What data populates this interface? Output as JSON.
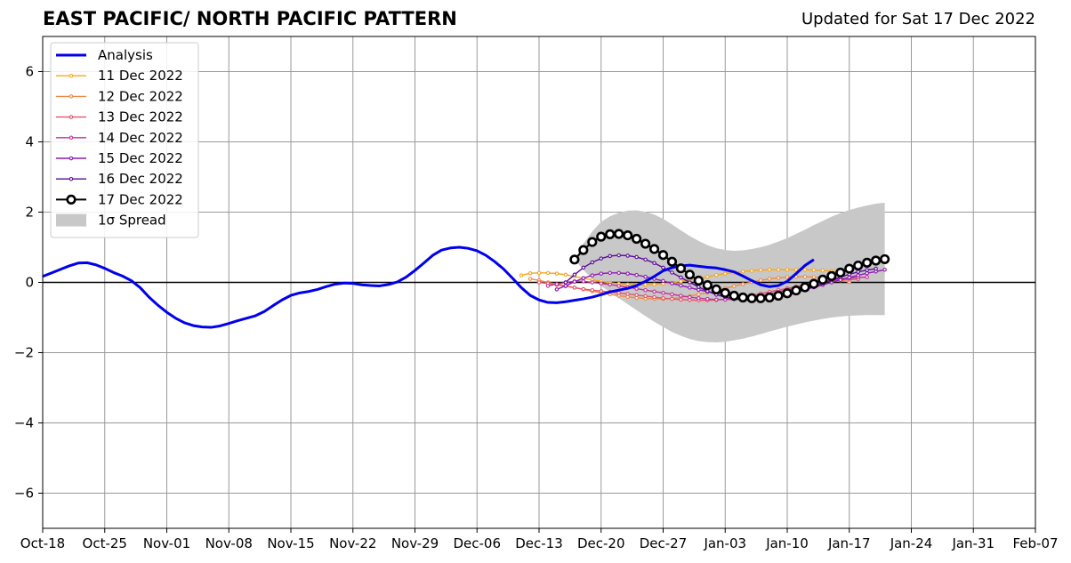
{
  "title": "EAST PACIFIC/ NORTH PACIFIC PATTERN",
  "updated": "Updated for Sat 17 Dec 2022",
  "colors": {
    "analysis": "#0000ee",
    "zero_line": "#000000",
    "grid": "#9a9a9a",
    "spread": "#c8c8c8"
  },
  "chart_data": {
    "type": "line",
    "title": "EAST PACIFIC/ NORTH PACIFIC PATTERN",
    "xlabel": "",
    "ylabel": "",
    "xlim": [
      "2022-10-18",
      "2023-02-07"
    ],
    "ylim": [
      -7,
      7
    ],
    "grid": true,
    "legend_position": "upper-left",
    "x_ticks": [
      "2022-10-18",
      "2022-10-25",
      "2022-11-01",
      "2022-11-08",
      "2022-11-15",
      "2022-11-22",
      "2022-11-29",
      "2022-12-06",
      "2022-12-13",
      "2022-12-20",
      "2022-12-27",
      "2023-01-03",
      "2023-01-10",
      "2023-01-17",
      "2023-01-24",
      "2023-01-31",
      "2023-02-07"
    ],
    "x_tick_labels": [
      "Oct-18",
      "Oct-25",
      "Nov-01",
      "Nov-08",
      "Nov-15",
      "Nov-22",
      "Nov-29",
      "Dec-06",
      "Dec-13",
      "Dec-20",
      "Dec-27",
      "Jan-03",
      "Jan-10",
      "Jan-17",
      "Jan-24",
      "Jan-31",
      "Feb-07"
    ],
    "y_ticks": [
      -6,
      -4,
      -2,
      0,
      2,
      4,
      6
    ],
    "y_tick_labels": [
      "−6",
      "−4",
      "−2",
      "0",
      "2",
      "4",
      "6"
    ],
    "analysis": {
      "name": "Analysis",
      "color": "#0000ee",
      "start": "2022-10-18",
      "values": [
        0.17,
        0.27,
        0.37,
        0.47,
        0.55,
        0.56,
        0.5,
        0.4,
        0.28,
        0.18,
        0.05,
        -0.15,
        -0.42,
        -0.65,
        -0.85,
        -1.02,
        -1.15,
        -1.23,
        -1.27,
        -1.28,
        -1.24,
        -1.17,
        -1.09,
        -1.02,
        -0.95,
        -0.83,
        -0.66,
        -0.5,
        -0.37,
        -0.3,
        -0.26,
        -0.2,
        -0.12,
        -0.05,
        -0.02,
        -0.03,
        -0.07,
        -0.09,
        -0.1,
        -0.06,
        0.01,
        0.15,
        0.34,
        0.55,
        0.77,
        0.92,
        0.98,
        1.0,
        0.97,
        0.9,
        0.77,
        0.59,
        0.38,
        0.12,
        -0.15,
        -0.37,
        -0.5,
        -0.57,
        -0.58,
        -0.55,
        -0.51,
        -0.47,
        -0.42,
        -0.35,
        -0.27,
        -0.22,
        -0.17,
        -0.09,
        0.03,
        0.17,
        0.33,
        0.42,
        0.47,
        0.49,
        0.46,
        0.43,
        0.41,
        0.36,
        0.3,
        0.18,
        0.05,
        -0.07,
        -0.12,
        -0.09,
        0.03,
        0.25,
        0.48,
        0.65
      ]
    },
    "forecasts": [
      {
        "name": "11 Dec 2022",
        "color": "#f5a623",
        "start": "2022-12-11",
        "values": [
          0.2,
          0.26,
          0.27,
          0.27,
          0.25,
          0.22,
          0.17,
          0.12,
          0.07,
          0.03,
          -0.01,
          -0.04,
          -0.06,
          -0.07,
          -0.07,
          -0.06,
          -0.04,
          -0.01,
          0.03,
          0.07,
          0.11,
          0.16,
          0.21,
          0.25,
          0.28,
          0.31,
          0.33,
          0.35,
          0.36,
          0.36,
          0.36,
          0.36,
          0.36,
          0.35,
          0.34,
          0.32,
          0.3
        ]
      },
      {
        "name": "12 Dec 2022",
        "color": "#f28a45",
        "start": "2022-12-12",
        "values": [
          0.1,
          0.06,
          0.0,
          -0.05,
          -0.1,
          -0.15,
          -0.2,
          -0.25,
          -0.3,
          -0.34,
          -0.38,
          -0.41,
          -0.44,
          -0.46,
          -0.47,
          -0.47,
          -0.46,
          -0.43,
          -0.39,
          -0.34,
          -0.29,
          -0.23,
          -0.17,
          -0.11,
          -0.05,
          0.01,
          0.06,
          0.1,
          0.13,
          0.15,
          0.16,
          0.16,
          0.15,
          0.13,
          0.1,
          0.06,
          0.01
        ]
      },
      {
        "name": "13 Dec 2022",
        "color": "#e0566a",
        "start": "2022-12-13",
        "values": [
          0.0,
          -0.03,
          -0.07,
          -0.11,
          -0.15,
          -0.19,
          -0.22,
          -0.25,
          -0.27,
          -0.3,
          -0.33,
          -0.36,
          -0.39,
          -0.42,
          -0.45,
          -0.47,
          -0.49,
          -0.5,
          -0.51,
          -0.51,
          -0.5,
          -0.48,
          -0.45,
          -0.41,
          -0.37,
          -0.32,
          -0.27,
          -0.22,
          -0.17,
          -0.12,
          -0.07,
          -0.03,
          0.01,
          0.04,
          0.07,
          0.08,
          0.09
        ]
      },
      {
        "name": "14 Dec 2022",
        "color": "#c0339a",
        "start": "2022-12-14",
        "values": [
          -0.1,
          -0.05,
          0.0,
          0.03,
          0.03,
          0.0,
          -0.03,
          -0.06,
          -0.1,
          -0.14,
          -0.18,
          -0.22,
          -0.26,
          -0.3,
          -0.34,
          -0.38,
          -0.42,
          -0.45,
          -0.47,
          -0.49,
          -0.49,
          -0.48,
          -0.46,
          -0.43,
          -0.38,
          -0.33,
          -0.27,
          -0.21,
          -0.15,
          -0.09,
          -0.03,
          0.02,
          0.06,
          0.1,
          0.12,
          0.14,
          0.15
        ]
      },
      {
        "name": "15 Dec 2022",
        "color": "#8e1bb0",
        "start": "2022-12-15",
        "values": [
          -0.2,
          -0.1,
          0.02,
          0.12,
          0.2,
          0.25,
          0.27,
          0.27,
          0.25,
          0.21,
          0.16,
          0.1,
          0.04,
          -0.03,
          -0.09,
          -0.15,
          -0.21,
          -0.26,
          -0.31,
          -0.35,
          -0.38,
          -0.4,
          -0.41,
          -0.4,
          -0.38,
          -0.35,
          -0.31,
          -0.26,
          -0.2,
          -0.14,
          -0.07,
          0.0,
          0.07,
          0.14,
          0.2,
          0.26,
          0.31,
          0.36
        ]
      },
      {
        "name": "16 Dec 2022",
        "color": "#5a0a99",
        "start": "2022-12-16",
        "values": [
          0.0,
          0.22,
          0.42,
          0.57,
          0.68,
          0.75,
          0.77,
          0.76,
          0.72,
          0.65,
          0.55,
          0.42,
          0.28,
          0.14,
          0.0,
          -0.13,
          -0.25,
          -0.35,
          -0.42,
          -0.47,
          -0.5,
          -0.51,
          -0.5,
          -0.47,
          -0.42,
          -0.36,
          -0.29,
          -0.21,
          -0.12,
          -0.03,
          0.06,
          0.15,
          0.23,
          0.3,
          0.35,
          0.39
        ]
      },
      {
        "name": "17 Dec 2022",
        "color": "#000000",
        "start": "2022-12-17",
        "values": [
          0.65,
          0.92,
          1.15,
          1.3,
          1.37,
          1.38,
          1.34,
          1.24,
          1.1,
          0.95,
          0.78,
          0.59,
          0.4,
          0.22,
          0.05,
          -0.08,
          -0.2,
          -0.3,
          -0.38,
          -0.43,
          -0.45,
          -0.45,
          -0.43,
          -0.38,
          -0.31,
          -0.23,
          -0.14,
          -0.04,
          0.08,
          0.18,
          0.28,
          0.39,
          0.48,
          0.56,
          0.62,
          0.66
        ]
      }
    ],
    "spread": {
      "name": "1σ Spread",
      "color": "#c8c8c8",
      "start": "2022-12-17",
      "upper": [
        0.65,
        1.1,
        1.45,
        1.72,
        1.88,
        1.98,
        2.04,
        2.05,
        2.01,
        1.93,
        1.81,
        1.65,
        1.48,
        1.32,
        1.18,
        1.06,
        0.97,
        0.92,
        0.9,
        0.91,
        0.95,
        1.0,
        1.07,
        1.16,
        1.26,
        1.38,
        1.5,
        1.63,
        1.75,
        1.87,
        1.97,
        2.06,
        2.13,
        2.19,
        2.24,
        2.27
      ],
      "lower": [
        0.65,
        0.35,
        0.1,
        -0.1,
        -0.28,
        -0.45,
        -0.62,
        -0.79,
        -0.96,
        -1.12,
        -1.27,
        -1.41,
        -1.52,
        -1.61,
        -1.67,
        -1.7,
        -1.71,
        -1.69,
        -1.65,
        -1.6,
        -1.54,
        -1.47,
        -1.4,
        -1.33,
        -1.26,
        -1.2,
        -1.14,
        -1.09,
        -1.04,
        -1.0,
        -0.97,
        -0.95,
        -0.94,
        -0.93,
        -0.93,
        -0.93
      ]
    },
    "legend": [
      "Analysis",
      "11 Dec 2022",
      "12 Dec 2022",
      "13 Dec 2022",
      "14 Dec 2022",
      "15 Dec 2022",
      "16 Dec 2022",
      "17 Dec 2022",
      "1σ Spread"
    ]
  }
}
